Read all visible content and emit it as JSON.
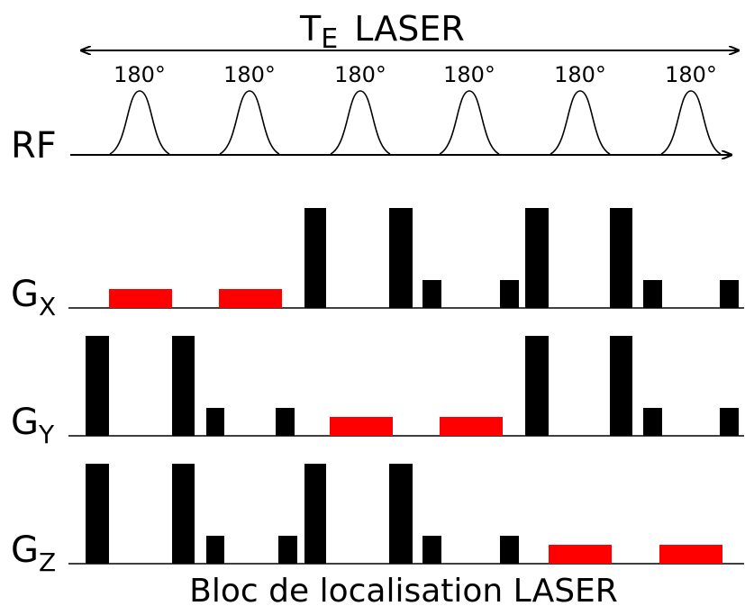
{
  "header": {
    "title_main": "T",
    "title_sub": "E",
    "title_rest": "LASER"
  },
  "rf": {
    "label": "RF",
    "pulse_label": "180°",
    "pulse_count": 6
  },
  "gradients": [
    {
      "id": "gx",
      "label_main": "G",
      "label_sub": "X",
      "pulses": [
        {
          "level": "crusher",
          "color": "#ff0000"
        },
        {
          "level": "crusher",
          "color": "#ff0000"
        },
        {
          "level": "tall",
          "color": "#000000"
        },
        {
          "level": "tall",
          "color": "#000000"
        },
        {
          "level": "small",
          "color": "#000000"
        },
        {
          "level": "small",
          "color": "#000000"
        },
        {
          "level": "tall",
          "color": "#000000"
        },
        {
          "level": "tall",
          "color": "#000000"
        },
        {
          "level": "small",
          "color": "#000000"
        },
        {
          "level": "small",
          "color": "#000000"
        }
      ]
    },
    {
      "id": "gy",
      "label_main": "G",
      "label_sub": "Y",
      "pulses": [
        {
          "level": "tall",
          "color": "#000000"
        },
        {
          "level": "tall",
          "color": "#000000"
        },
        {
          "level": "small",
          "color": "#000000"
        },
        {
          "level": "small",
          "color": "#000000"
        },
        {
          "level": "crusher",
          "color": "#ff0000"
        },
        {
          "level": "crusher",
          "color": "#ff0000"
        },
        {
          "level": "tall",
          "color": "#000000"
        },
        {
          "level": "tall",
          "color": "#000000"
        },
        {
          "level": "small",
          "color": "#000000"
        },
        {
          "level": "small",
          "color": "#000000"
        }
      ]
    },
    {
      "id": "gz",
      "label_main": "G",
      "label_sub": "Z",
      "pulses": [
        {
          "level": "tall",
          "color": "#000000"
        },
        {
          "level": "tall",
          "color": "#000000"
        },
        {
          "level": "small",
          "color": "#000000"
        },
        {
          "level": "small",
          "color": "#000000"
        },
        {
          "level": "tall",
          "color": "#000000"
        },
        {
          "level": "tall",
          "color": "#000000"
        },
        {
          "level": "small",
          "color": "#000000"
        },
        {
          "level": "small",
          "color": "#000000"
        },
        {
          "level": "crusher",
          "color": "#ff0000"
        },
        {
          "level": "crusher",
          "color": "#ff0000"
        }
      ]
    }
  ],
  "footer": {
    "caption": "Bloc de localisation LASER"
  },
  "colors": {
    "crusher": "#ff0000",
    "gradient": "#000000",
    "line": "#000000"
  }
}
